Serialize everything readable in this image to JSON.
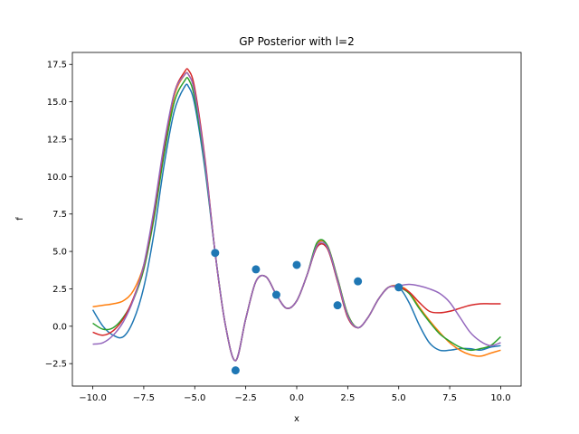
{
  "chart_data": {
    "type": "line",
    "title": "GP Posterior with l=2",
    "xlabel": "x",
    "ylabel": "f",
    "xlim": [
      -11,
      11
    ],
    "ylim": [
      -4,
      18.3
    ],
    "grid": false,
    "xticks": [
      -10.0,
      -7.5,
      -5.0,
      -2.5,
      0.0,
      2.5,
      5.0,
      7.5,
      10.0
    ],
    "xtick_labels": [
      "−10.0",
      "−7.5",
      "−5.0",
      "−2.5",
      "0.0",
      "2.5",
      "5.0",
      "7.5",
      "10.0"
    ],
    "yticks": [
      -2.5,
      0.0,
      2.5,
      5.0,
      7.5,
      10.0,
      12.5,
      15.0,
      17.5
    ],
    "ytick_labels": [
      "−2.5",
      "0.0",
      "2.5",
      "5.0",
      "7.5",
      "10.0",
      "12.5",
      "15.0",
      "17.5"
    ],
    "observations": {
      "color": "#1f77b4",
      "x": [
        -4,
        -3,
        -2,
        -1,
        0,
        2,
        3,
        5
      ],
      "y": [
        4.9,
        -2.95,
        3.8,
        2.1,
        4.1,
        1.4,
        3.0,
        2.6
      ]
    },
    "series": [
      {
        "color": "#1f77b4",
        "x": [
          -10,
          -9.5,
          -9,
          -8.5,
          -8,
          -7.5,
          -7,
          -6.5,
          -6,
          -5.5,
          -5.3,
          -5,
          -4.5,
          -4,
          -3.5,
          -3,
          -2.5,
          -2,
          -1.5,
          -1,
          -0.5,
          0,
          0.5,
          1,
          1.5,
          2,
          2.5,
          3,
          3.5,
          4,
          4.5,
          5,
          5.5,
          6,
          6.5,
          7,
          7.5,
          8,
          8.5,
          9,
          9.5,
          10
        ],
        "y": [
          1.1,
          0.0,
          -0.6,
          -0.7,
          0.4,
          2.6,
          6.2,
          10.8,
          14.4,
          16.0,
          16.0,
          14.8,
          10.5,
          4.9,
          0.1,
          -2.3,
          0.5,
          3.0,
          3.3,
          2.1,
          1.2,
          1.7,
          3.4,
          5.3,
          5.2,
          3.0,
          0.6,
          -0.1,
          0.6,
          1.8,
          2.6,
          2.6,
          1.6,
          0.1,
          -1.1,
          -1.6,
          -1.6,
          -1.5,
          -1.5,
          -1.6,
          -1.4,
          -1.3
        ]
      },
      {
        "color": "#ff7f0e",
        "x": [
          -10,
          -9.5,
          -9,
          -8.5,
          -8,
          -7.5,
          -7,
          -6.5,
          -6,
          -5.5,
          -5.3,
          -5,
          -4.5,
          -4,
          -3.5,
          -3,
          -2.5,
          -2,
          -1.5,
          -1,
          -0.5,
          0,
          0.5,
          1,
          1.5,
          2,
          2.5,
          3,
          3.5,
          4,
          4.5,
          5,
          5.5,
          6,
          6.5,
          7,
          7.5,
          8,
          8.5,
          9,
          9.5,
          10
        ],
        "y": [
          1.3,
          1.4,
          1.5,
          1.7,
          2.4,
          4.1,
          7.5,
          11.8,
          15.4,
          16.8,
          16.8,
          15.6,
          11.0,
          4.9,
          0.1,
          -2.3,
          0.5,
          3.0,
          3.3,
          2.1,
          1.2,
          1.7,
          3.4,
          5.5,
          5.4,
          3.2,
          0.8,
          -0.1,
          0.6,
          1.8,
          2.6,
          2.7,
          2.3,
          1.3,
          0.4,
          -0.4,
          -1.1,
          -1.6,
          -1.9,
          -2.0,
          -1.8,
          -1.6
        ]
      },
      {
        "color": "#2ca02c",
        "x": [
          -10,
          -9.5,
          -9,
          -8.5,
          -8,
          -7.5,
          -7,
          -6.5,
          -6,
          -5.5,
          -5.3,
          -5,
          -4.5,
          -4,
          -3.5,
          -3,
          -2.5,
          -2,
          -1.5,
          -1,
          -0.5,
          0,
          0.5,
          1,
          1.5,
          2,
          2.5,
          3,
          3.5,
          4,
          4.5,
          5,
          5.5,
          6,
          6.5,
          7,
          7.5,
          8,
          8.5,
          9,
          9.5,
          10
        ],
        "y": [
          0.2,
          -0.2,
          -0.1,
          0.6,
          1.8,
          3.8,
          7.2,
          11.5,
          15.0,
          16.4,
          16.5,
          15.2,
          10.8,
          4.9,
          0.1,
          -2.3,
          0.5,
          3.0,
          3.3,
          2.1,
          1.2,
          1.7,
          3.4,
          5.6,
          5.4,
          3.2,
          0.8,
          -0.1,
          0.6,
          1.8,
          2.6,
          2.6,
          2.2,
          1.2,
          0.3,
          -0.5,
          -1.0,
          -1.4,
          -1.6,
          -1.5,
          -1.3,
          -0.7
        ]
      },
      {
        "color": "#d62728",
        "x": [
          -10,
          -9.5,
          -9,
          -8.5,
          -8,
          -7.5,
          -7,
          -6.5,
          -6,
          -5.5,
          -5.3,
          -5,
          -4.5,
          -4,
          -3.5,
          -3,
          -2.5,
          -2,
          -1.5,
          -1,
          -0.5,
          0,
          0.5,
          1,
          1.5,
          2,
          2.5,
          3,
          3.5,
          4,
          4.5,
          5,
          5.5,
          6,
          6.5,
          7,
          7.5,
          8,
          8.5,
          9,
          9.5,
          10
        ],
        "y": [
          -0.4,
          -0.6,
          -0.3,
          0.5,
          1.9,
          4.0,
          7.6,
          12.0,
          15.6,
          17.0,
          17.1,
          15.9,
          11.2,
          4.9,
          0.1,
          -2.3,
          0.5,
          3.0,
          3.3,
          2.1,
          1.2,
          1.7,
          3.4,
          5.3,
          5.2,
          3.0,
          0.6,
          -0.1,
          0.6,
          1.8,
          2.6,
          2.6,
          2.3,
          1.6,
          1.0,
          0.9,
          1.0,
          1.2,
          1.4,
          1.5,
          1.5,
          1.5
        ]
      },
      {
        "color": "#9467bd",
        "x": [
          -10,
          -9.5,
          -9,
          -8.5,
          -8,
          -7.5,
          -7,
          -6.5,
          -6,
          -5.5,
          -5.3,
          -5,
          -4.5,
          -4,
          -3.5,
          -3,
          -2.5,
          -2,
          -1.5,
          -1,
          -0.5,
          0,
          0.5,
          1,
          1.5,
          2,
          2.5,
          3,
          3.5,
          4,
          4.5,
          5,
          5.5,
          6,
          6.5,
          7,
          7.5,
          8,
          8.5,
          9,
          9.5,
          10
        ],
        "y": [
          -1.2,
          -1.1,
          -0.6,
          0.3,
          1.8,
          4.1,
          7.8,
          12.2,
          15.6,
          16.8,
          16.8,
          15.6,
          11.0,
          4.9,
          0.1,
          -2.3,
          0.5,
          3.0,
          3.3,
          2.1,
          1.2,
          1.7,
          3.4,
          5.4,
          5.3,
          3.1,
          0.7,
          -0.1,
          0.6,
          1.8,
          2.6,
          2.7,
          2.8,
          2.7,
          2.5,
          2.2,
          1.6,
          0.6,
          -0.4,
          -1.0,
          -1.3,
          -1.1
        ]
      }
    ]
  }
}
